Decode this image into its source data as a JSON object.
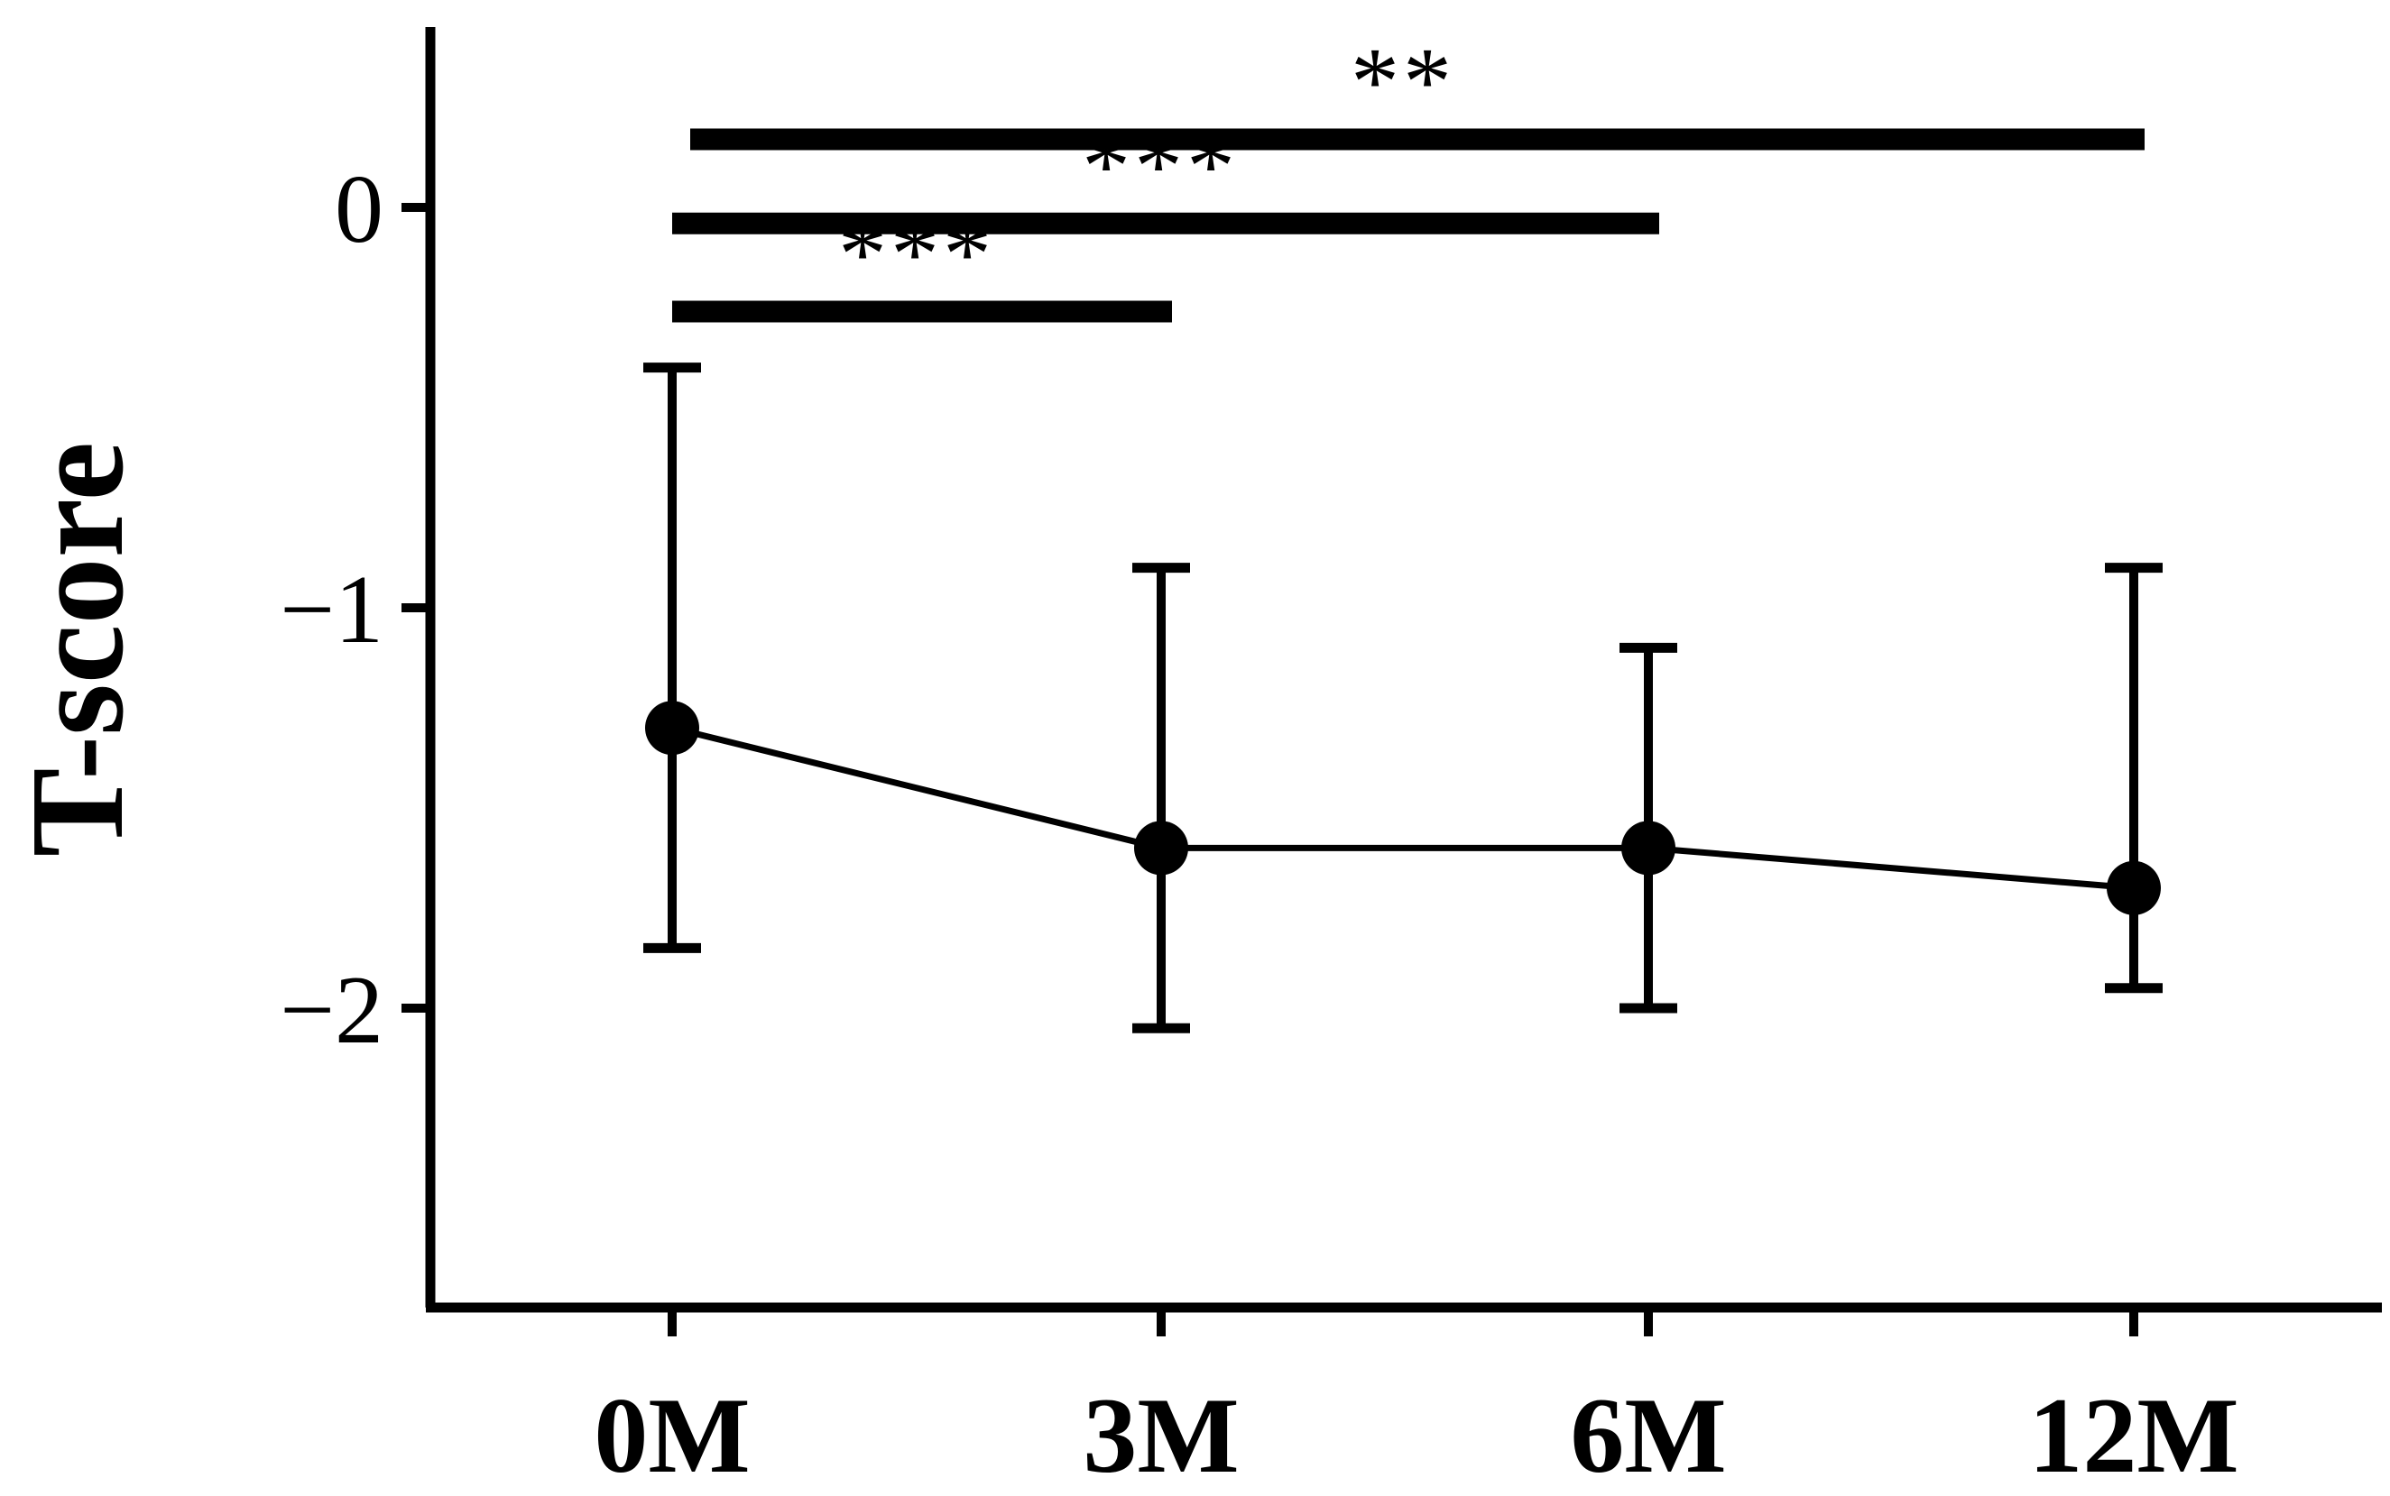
{
  "chart_data": {
    "type": "line",
    "title": "",
    "xlabel": "",
    "ylabel": "T-score",
    "categories": [
      "0M",
      "3M",
      "6M",
      "12M"
    ],
    "ylim": [
      -2.75,
      0.45
    ],
    "yticks": [
      0,
      -1,
      -2
    ],
    "ytick_labels": [
      "0",
      "−1",
      "−2"
    ],
    "series": [
      {
        "values": [
          -1.3,
          -1.6,
          -1.6,
          -1.7
        ],
        "error_low": [
          -1.85,
          -2.05,
          -2.0,
          -1.95
        ],
        "error_high": [
          -0.4,
          -0.9,
          -1.1,
          -0.9
        ]
      }
    ],
    "significance": [
      {
        "from": "0M",
        "to": "3M",
        "label": "***",
        "y": -0.26
      },
      {
        "from": "0M",
        "to": "6M",
        "label": "***",
        "y": -0.04
      },
      {
        "from": "0M",
        "to": "12M",
        "label": "**",
        "y": 0.17
      }
    ],
    "grid": false,
    "legend": "none",
    "color": "#000000"
  }
}
